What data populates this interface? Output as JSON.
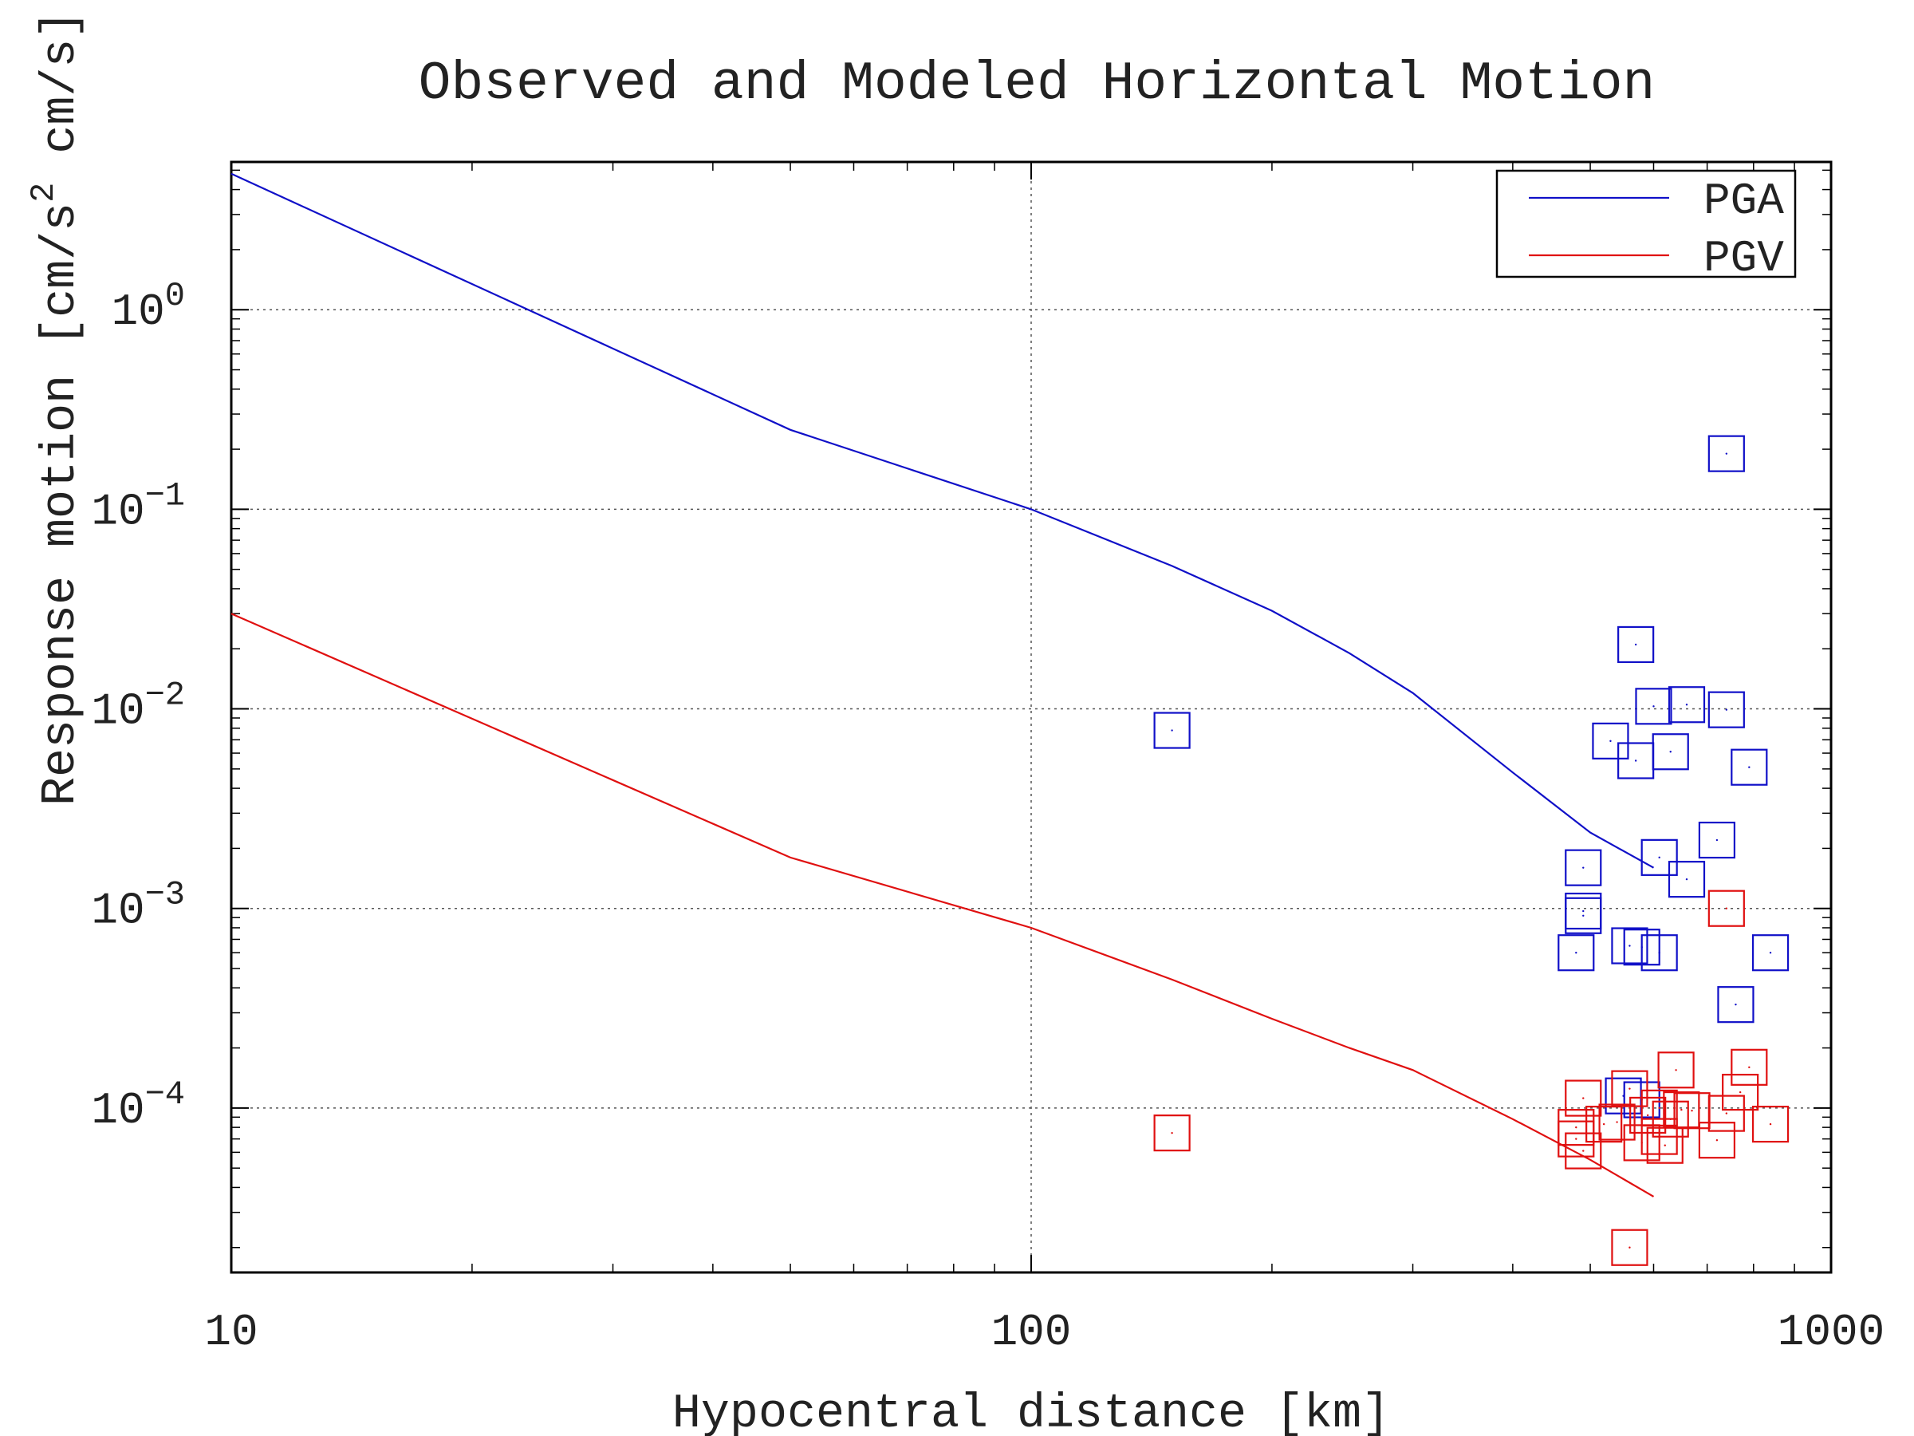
{
  "chart_data": {
    "type": "scatter",
    "title": "Observed and Modeled Horizontal Motion",
    "xlabel": "Hypocentral distance [km]",
    "ylabel": "Response motion [cm/s",
    "ylabel_sup": "2",
    "ylabel_tail": " cm/s]",
    "xscale": "log",
    "yscale": "log",
    "xlim": [
      10,
      1000
    ],
    "ylim": [
      1.5e-05,
      5.5
    ],
    "grid": true,
    "legend_position": "top-right",
    "xticks": [
      {
        "value": 10,
        "label": "10"
      },
      {
        "value": 100,
        "label": "100"
      },
      {
        "value": 1000,
        "label": "1000"
      }
    ],
    "yticks": [
      {
        "value": 1,
        "base": "10",
        "exp": "0"
      },
      {
        "value": 0.1,
        "base": "10",
        "exp": "−1"
      },
      {
        "value": 0.01,
        "base": "10",
        "exp": "−2"
      },
      {
        "value": 0.001,
        "base": "10",
        "exp": "−3"
      },
      {
        "value": 0.0001,
        "base": "10",
        "exp": "−4"
      }
    ],
    "lines": [
      {
        "name": "PGA",
        "color": "#1010c8",
        "points": [
          [
            10,
            4.8
          ],
          [
            50,
            0.25
          ],
          [
            100,
            0.1
          ],
          [
            150,
            0.052
          ],
          [
            200,
            0.031
          ],
          [
            250,
            0.019
          ],
          [
            300,
            0.012
          ],
          [
            400,
            0.0048
          ],
          [
            500,
            0.0024
          ],
          [
            600,
            0.0016
          ]
        ]
      },
      {
        "name": "PGV",
        "color": "#e01010",
        "points": [
          [
            10,
            0.03
          ],
          [
            50,
            0.0018
          ],
          [
            100,
            0.0008
          ],
          [
            150,
            0.00044
          ],
          [
            200,
            0.00028
          ],
          [
            250,
            0.0002
          ],
          [
            300,
            0.000155
          ],
          [
            400,
            8.8e-05
          ],
          [
            500,
            5.5e-05
          ],
          [
            600,
            3.6e-05
          ]
        ]
      }
    ],
    "observed": [
      {
        "name": "PGA observed",
        "color": "#1010c8",
        "points": [
          [
            150,
            0.0078
          ],
          [
            570,
            0.021
          ],
          [
            600,
            0.0103
          ],
          [
            660,
            0.0105
          ],
          [
            740,
            0.0099
          ],
          [
            530,
            0.0069
          ],
          [
            570,
            0.0055
          ],
          [
            630,
            0.0061
          ],
          [
            790,
            0.0051
          ],
          [
            720,
            0.0022
          ],
          [
            610,
            0.0018
          ],
          [
            490,
            0.0016
          ],
          [
            660,
            0.0014
          ],
          [
            490,
            0.00097
          ],
          [
            490,
            0.00092
          ],
          [
            560,
            0.00065
          ],
          [
            580,
            0.00064
          ],
          [
            610,
            0.0006
          ],
          [
            480,
            0.0006
          ],
          [
            840,
            0.0006
          ],
          [
            760,
            0.00033
          ],
          [
            740,
            0.19
          ],
          [
            550,
            0.000115
          ],
          [
            580,
            0.00011
          ]
        ]
      },
      {
        "name": "PGV observed",
        "color": "#e01010",
        "points": [
          [
            150,
            7.5e-05
          ],
          [
            740,
            0.001
          ],
          [
            640,
            0.000155
          ],
          [
            790,
            0.00016
          ],
          [
            770,
            0.00012
          ],
          [
            490,
            0.000112
          ],
          [
            560,
            0.000125
          ],
          [
            610,
            0.0001
          ],
          [
            650,
            9.8e-05
          ],
          [
            670,
            9.7e-05
          ],
          [
            740,
            9.4e-05
          ],
          [
            590,
            9.2e-05
          ],
          [
            630,
            8.8e-05
          ],
          [
            540,
            8.5e-05
          ],
          [
            520,
            8.3e-05
          ],
          [
            840,
            8.3e-05
          ],
          [
            480,
            8e-05
          ],
          [
            480,
            7e-05
          ],
          [
            610,
            7.2e-05
          ],
          [
            720,
            6.9e-05
          ],
          [
            580,
            6.7e-05
          ],
          [
            620,
            6.5e-05
          ],
          [
            490,
            6.1e-05
          ],
          [
            560,
            2e-05
          ]
        ]
      }
    ]
  }
}
